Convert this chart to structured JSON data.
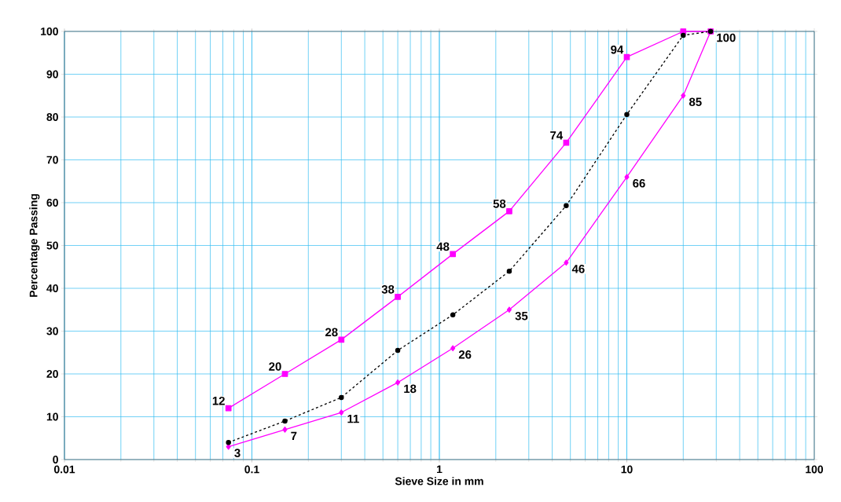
{
  "chart_data": {
    "type": "line",
    "xlabel": "Sieve Size in mm",
    "ylabel": "Percentage Passing",
    "log": "x",
    "grid": true,
    "xlim": [
      0.01,
      100
    ],
    "xticks": [
      0.01,
      0.1,
      1,
      10,
      100
    ],
    "ylim": [
      0,
      100
    ],
    "yticks": [
      0,
      10,
      20,
      30,
      40,
      50,
      60,
      70,
      80,
      90,
      100
    ],
    "x": [
      0.075,
      0.15,
      0.3,
      0.6,
      1.18,
      2.36,
      4.75,
      10,
      20,
      28
    ],
    "series": [
      {
        "color": "#ff00ff",
        "marker": "square",
        "line_style": "solid",
        "values": [
          12,
          20,
          28,
          38,
          48,
          58,
          74,
          94,
          100,
          100
        ],
        "value_labels": [
          "12",
          "20",
          "28",
          "38",
          "48",
          "58",
          "74",
          "94",
          null,
          null
        ]
      },
      {
        "color": "#ff00ff",
        "marker": "diamond",
        "line_style": "solid",
        "values": [
          3,
          7,
          11,
          18,
          26,
          35,
          46,
          66,
          85,
          100
        ],
        "value_labels": [
          "3",
          "7",
          "11",
          "18",
          "26",
          "35",
          "46",
          "66",
          "85",
          "100"
        ]
      },
      {
        "color": "#000000",
        "marker": "circle",
        "line_style": "dashed",
        "values": [
          4,
          9,
          14.5,
          25.5,
          33.8,
          44,
          59.3,
          80.6,
          99.1,
          100
        ]
      }
    ]
  }
}
